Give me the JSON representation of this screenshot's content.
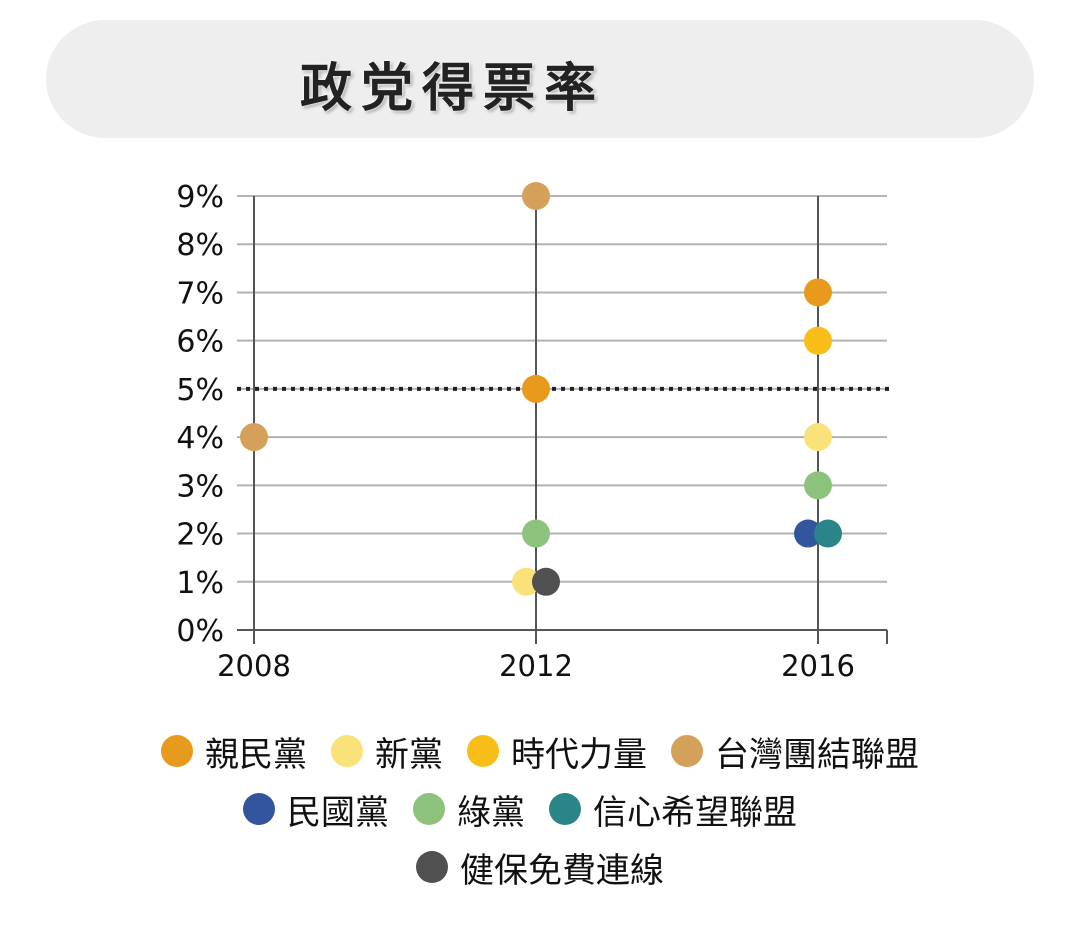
{
  "header": {
    "title": "政党得票率"
  },
  "chart_data": {
    "type": "scatter",
    "title": "政党得票率",
    "x_categories": [
      "2008",
      "2012",
      "2016"
    ],
    "y_ticks": [
      "0%",
      "1%",
      "2%",
      "3%",
      "4%",
      "5%",
      "6%",
      "7%",
      "8%",
      "9%"
    ],
    "ylim": [
      0,
      9
    ],
    "threshold": 5,
    "grid": true,
    "legend_position": "bottom",
    "series": [
      {
        "name": "親民黨",
        "color": "#E89A1C",
        "points": [
          {
            "x": "2012",
            "y": 5
          },
          {
            "x": "2016",
            "y": 7
          }
        ]
      },
      {
        "name": "新黨",
        "color": "#F9E27A",
        "points": [
          {
            "x": "2012",
            "y": 1
          },
          {
            "x": "2016",
            "y": 4
          }
        ]
      },
      {
        "name": "時代力量",
        "color": "#F8BE17",
        "points": [
          {
            "x": "2016",
            "y": 6
          }
        ]
      },
      {
        "name": "台灣團結聯盟",
        "color": "#D4A05A",
        "points": [
          {
            "x": "2008",
            "y": 4
          },
          {
            "x": "2012",
            "y": 9
          }
        ]
      },
      {
        "name": "民國黨",
        "color": "#33559E",
        "points": [
          {
            "x": "2016",
            "y": 2
          }
        ]
      },
      {
        "name": "綠黨",
        "color": "#8DC27C",
        "points": [
          {
            "x": "2012",
            "y": 2
          },
          {
            "x": "2016",
            "y": 3
          }
        ]
      },
      {
        "name": "信心希望聯盟",
        "color": "#2A8589",
        "points": [
          {
            "x": "2016",
            "y": 2
          }
        ]
      },
      {
        "name": "健保免費連線",
        "color": "#505050",
        "points": [
          {
            "x": "2012",
            "y": 1
          }
        ]
      }
    ]
  }
}
